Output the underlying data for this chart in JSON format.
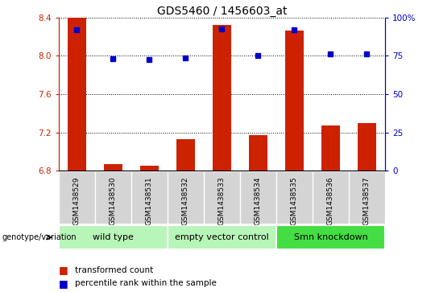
{
  "title": "GDS5460 / 1456603_at",
  "samples": [
    "GSM1438529",
    "GSM1438530",
    "GSM1438531",
    "GSM1438532",
    "GSM1438533",
    "GSM1438534",
    "GSM1438535",
    "GSM1438536",
    "GSM1438537"
  ],
  "red_values": [
    8.4,
    6.87,
    6.85,
    7.13,
    8.32,
    7.17,
    8.26,
    7.27,
    7.3
  ],
  "blue_values": [
    8.27,
    7.97,
    7.96,
    7.98,
    8.28,
    8.0,
    8.27,
    8.02,
    8.02
  ],
  "ylim_left": [
    6.8,
    8.4
  ],
  "ylim_right": [
    0,
    100
  ],
  "yticks_left": [
    6.8,
    7.2,
    7.6,
    8.0,
    8.4
  ],
  "yticks_right": [
    0,
    25,
    50,
    75,
    100
  ],
  "groups": [
    {
      "label": "wild type",
      "start": 0,
      "end": 2
    },
    {
      "label": "empty vector control",
      "start": 3,
      "end": 5
    },
    {
      "label": "Smn knockdown",
      "start": 6,
      "end": 8
    }
  ],
  "group_colors": [
    "#b8f5b8",
    "#b8f5b8",
    "#44dd44"
  ],
  "red_color": "#cc2200",
  "blue_color": "#0000cc",
  "bar_width": 0.5,
  "legend_red": "transformed count",
  "legend_blue": "percentile rank within the sample",
  "genotype_label": "genotype/variation",
  "title_fontsize": 10,
  "tick_fontsize": 7.5,
  "sample_fontsize": 6.5,
  "group_fontsize": 8,
  "legend_fontsize": 7.5
}
